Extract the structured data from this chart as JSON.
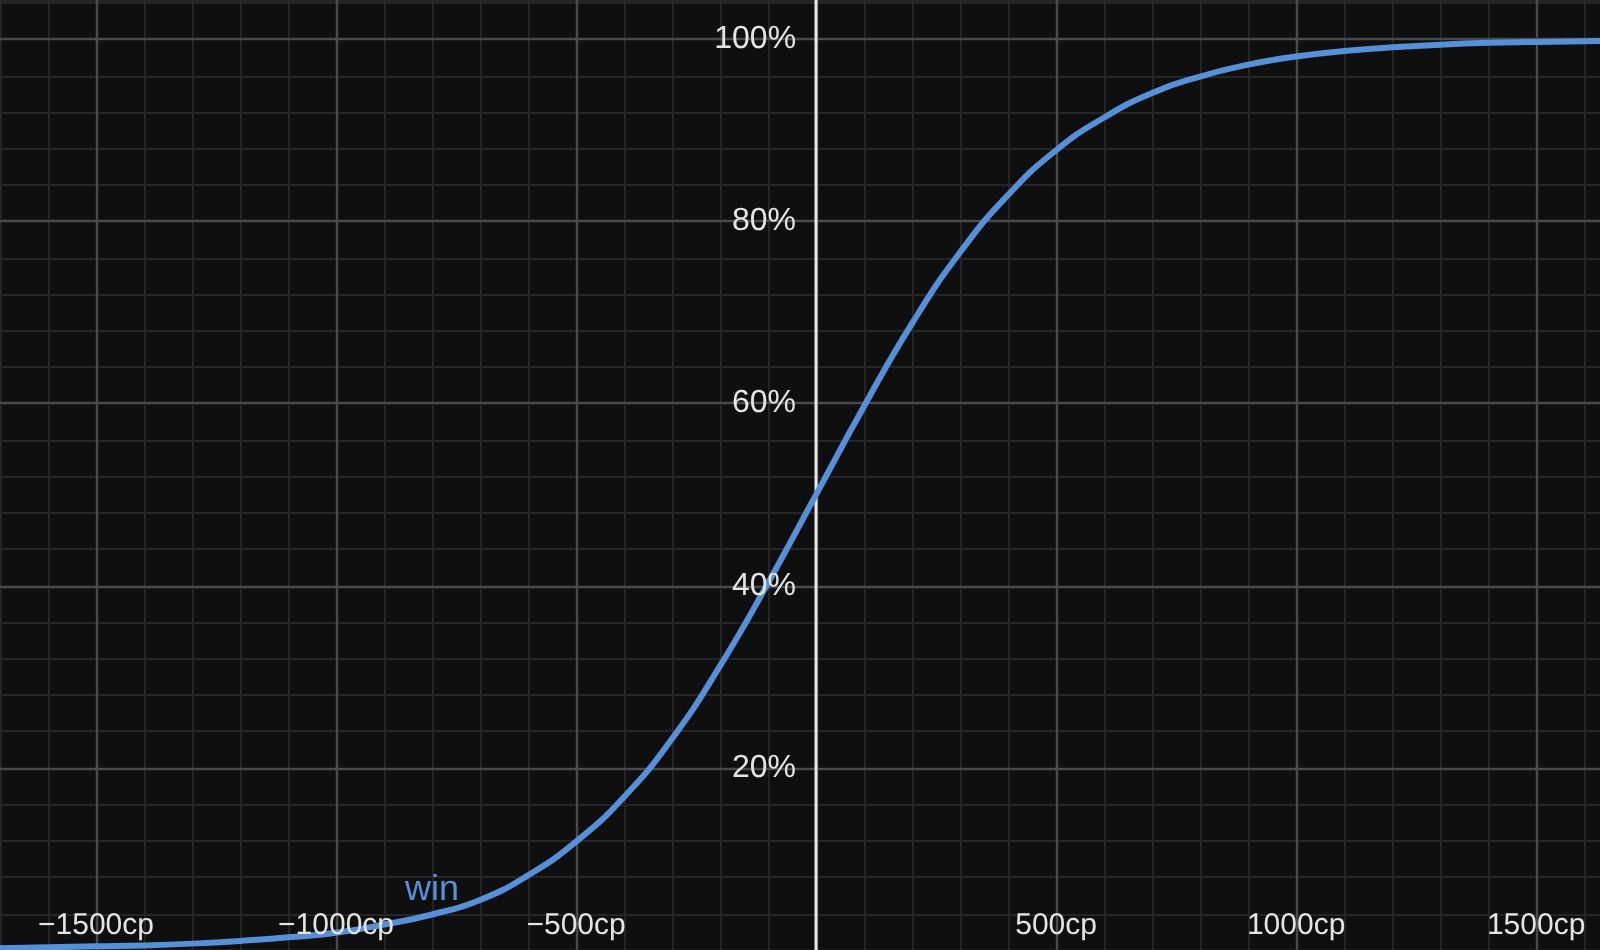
{
  "chart_data": {
    "type": "line",
    "x": [
      -1700,
      -1600,
      -1500,
      -1400,
      -1300,
      -1200,
      -1100,
      -1000,
      -900,
      -800,
      -700,
      -600,
      -500,
      -400,
      -300,
      -200,
      -100,
      0,
      100,
      200,
      300,
      400,
      500,
      600,
      700,
      800,
      900,
      1000,
      1100,
      1200,
      1300,
      1400,
      1500,
      1633
    ],
    "series": [
      {
        "name": "win",
        "color": "#5590d8",
        "values": [
          0.2,
          0.3,
          0.4,
          0.5,
          0.7,
          1.0,
          1.4,
          1.9,
          2.8,
          3.9,
          5.5,
          8.2,
          11.9,
          16.8,
          23.2,
          31.2,
          40.3,
          50,
          59.7,
          68.8,
          76.6,
          82.9,
          87.8,
          91.4,
          94.1,
          95.9,
          97.2,
          98.1,
          98.7,
          99.1,
          99.4,
          99.6,
          99.7,
          99.8
        ]
      }
    ],
    "xlim": [
      -1700,
      1633
    ],
    "ylim": [
      0,
      104.3
    ],
    "xticks": [
      {
        "value": -1500,
        "label": "−1500cp"
      },
      {
        "value": -1000,
        "label": "−1000cp"
      },
      {
        "value": -500,
        "label": "−500cp"
      },
      {
        "value": 0,
        "label": null
      },
      {
        "value": 500,
        "label": "500cp"
      },
      {
        "value": 1000,
        "label": "1000cp"
      },
      {
        "value": 1500,
        "label": "1500cp"
      }
    ],
    "yticks": [
      {
        "value": 0,
        "label": null
      },
      {
        "value": 20,
        "label": "20%"
      },
      {
        "value": 40,
        "label": "40%"
      },
      {
        "value": 60,
        "label": "60%"
      },
      {
        "value": 80,
        "label": "80%"
      },
      {
        "value": 100,
        "label": "100%"
      }
    ],
    "grid": true,
    "marker": "none"
  }
}
